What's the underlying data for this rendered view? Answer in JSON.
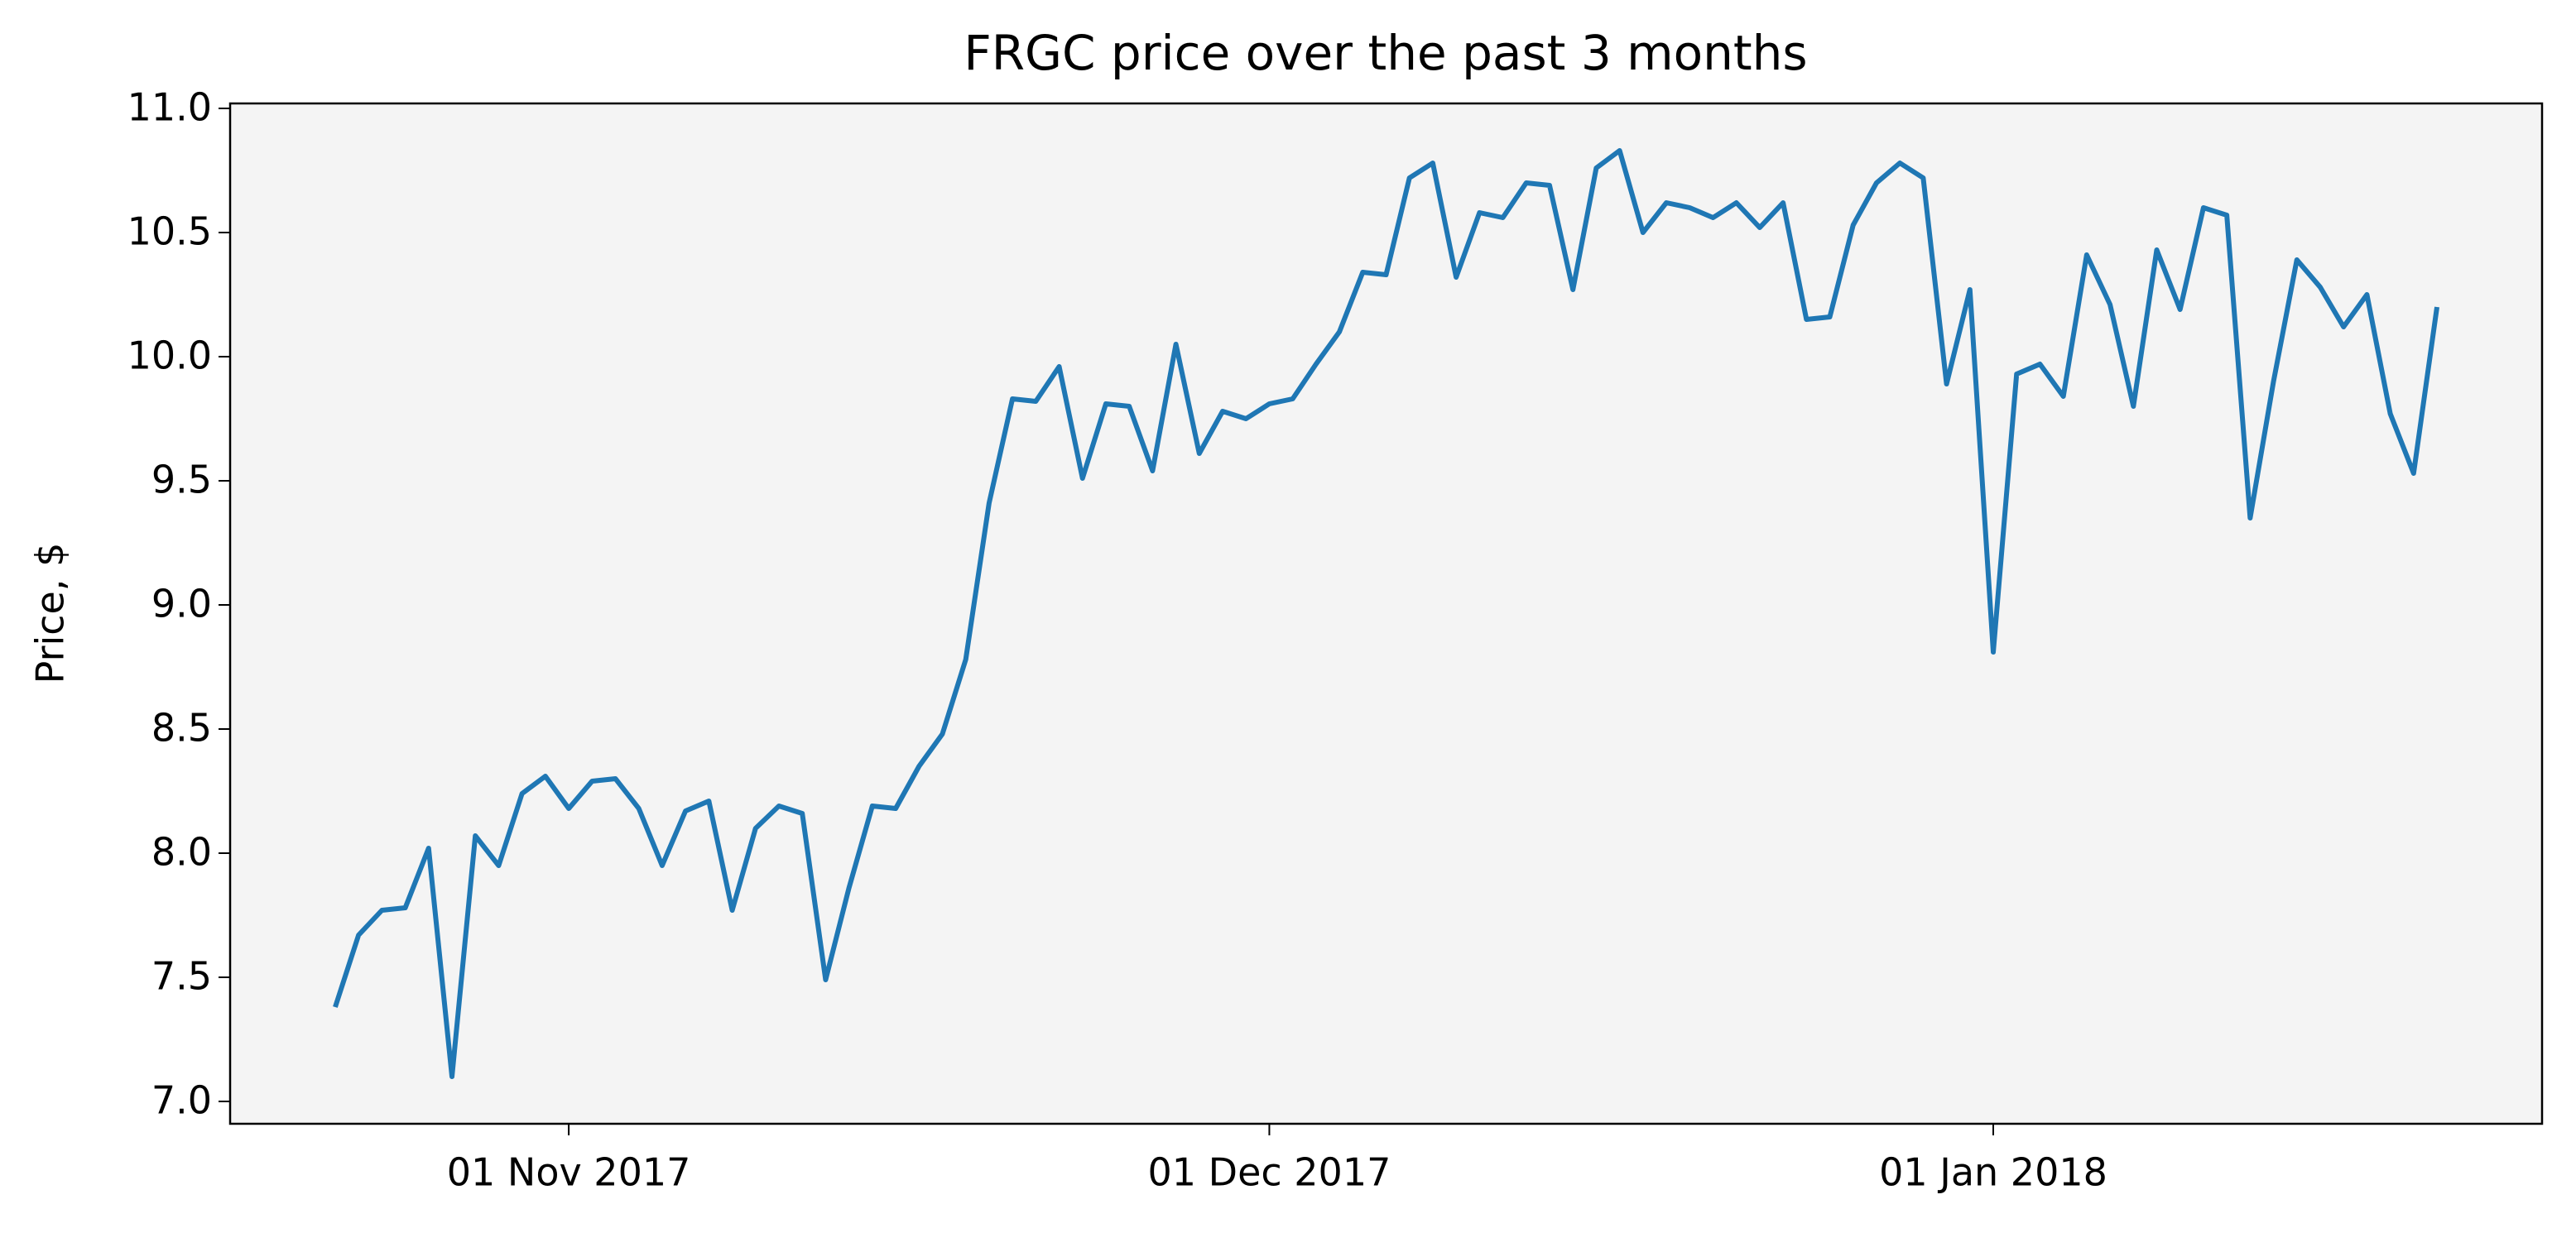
{
  "chart_data": {
    "type": "line",
    "title": "FRGC price over the past 3 months",
    "y_label": "Price, $",
    "x": [
      "2017-10-22",
      "2017-10-23",
      "2017-10-24",
      "2017-10-25",
      "2017-10-26",
      "2017-10-27",
      "2017-10-28",
      "2017-10-29",
      "2017-10-30",
      "2017-10-31",
      "2017-11-01",
      "2017-11-02",
      "2017-11-03",
      "2017-11-04",
      "2017-11-05",
      "2017-11-06",
      "2017-11-07",
      "2017-11-08",
      "2017-11-09",
      "2017-11-10",
      "2017-11-11",
      "2017-11-12",
      "2017-11-13",
      "2017-11-14",
      "2017-11-15",
      "2017-11-16",
      "2017-11-17",
      "2017-11-18",
      "2017-11-19",
      "2017-11-20",
      "2017-11-21",
      "2017-11-22",
      "2017-11-23",
      "2017-11-24",
      "2017-11-25",
      "2017-11-26",
      "2017-11-27",
      "2017-11-28",
      "2017-11-29",
      "2017-11-30",
      "2017-12-01",
      "2017-12-02",
      "2017-12-03",
      "2017-12-04",
      "2017-12-05",
      "2017-12-06",
      "2017-12-07",
      "2017-12-08",
      "2017-12-09",
      "2017-12-10",
      "2017-12-11",
      "2017-12-12",
      "2017-12-13",
      "2017-12-14",
      "2017-12-15",
      "2017-12-16",
      "2017-12-17",
      "2017-12-18",
      "2017-12-19",
      "2017-12-20",
      "2017-12-21",
      "2017-12-22",
      "2017-12-23",
      "2017-12-24",
      "2017-12-25",
      "2017-12-26",
      "2017-12-27",
      "2017-12-28",
      "2017-12-29",
      "2017-12-30",
      "2017-12-31",
      "2018-01-01",
      "2018-01-02",
      "2018-01-03",
      "2018-01-04",
      "2018-01-05",
      "2018-01-06",
      "2018-01-07",
      "2018-01-08",
      "2018-01-09",
      "2018-01-10",
      "2018-01-11",
      "2018-01-12",
      "2018-01-13",
      "2018-01-14",
      "2018-01-15",
      "2018-01-16",
      "2018-01-17",
      "2018-01-18",
      "2018-01-19",
      "2018-01-20"
    ],
    "values": [
      7.38,
      7.67,
      7.77,
      7.78,
      8.02,
      7.1,
      8.07,
      7.95,
      8.24,
      8.31,
      8.18,
      8.29,
      8.3,
      8.18,
      7.95,
      8.17,
      8.21,
      7.77,
      8.1,
      8.19,
      8.16,
      7.49,
      7.86,
      8.19,
      8.18,
      8.35,
      8.48,
      8.78,
      9.41,
      9.83,
      9.82,
      9.96,
      9.51,
      9.81,
      9.8,
      9.54,
      10.05,
      9.61,
      9.78,
      9.75,
      9.81,
      9.83,
      9.97,
      10.1,
      10.34,
      10.33,
      10.72,
      10.78,
      10.32,
      10.58,
      10.56,
      10.7,
      10.69,
      10.27,
      10.76,
      10.83,
      10.5,
      10.62,
      10.6,
      10.56,
      10.62,
      10.52,
      10.62,
      10.15,
      10.16,
      10.53,
      10.7,
      10.78,
      10.72,
      9.89,
      10.27,
      8.81,
      9.93,
      9.97,
      9.84,
      10.41,
      10.21,
      9.8,
      10.43,
      10.19,
      10.6,
      10.57,
      9.35,
      9.9,
      10.39,
      10.28,
      10.12,
      10.25,
      9.77,
      9.53,
      10.2
    ],
    "color": "#1f77b4",
    "xlim": [
      "2017-10-17T12:00:00",
      "2018-01-24T12:00:00"
    ],
    "xticks": [
      {
        "value": "2017-11-01",
        "label": "01 Nov 2017"
      },
      {
        "value": "2017-12-01",
        "label": "01 Dec 2017"
      },
      {
        "value": "2018-01-01",
        "label": "01 Jan 2018"
      }
    ],
    "ylim": [
      6.91,
      11.02
    ],
    "yticks": [
      {
        "value": 7,
        "label": "7.0"
      },
      7.5,
      {
        "value": 8,
        "label": "8.0"
      },
      8.5,
      {
        "value": 9,
        "label": "9.0"
      },
      9.5,
      {
        "value": 10,
        "label": "10.0"
      },
      10.5,
      {
        "value": 11,
        "label": "11.0"
      }
    ],
    "background": "#f4f4f4"
  }
}
